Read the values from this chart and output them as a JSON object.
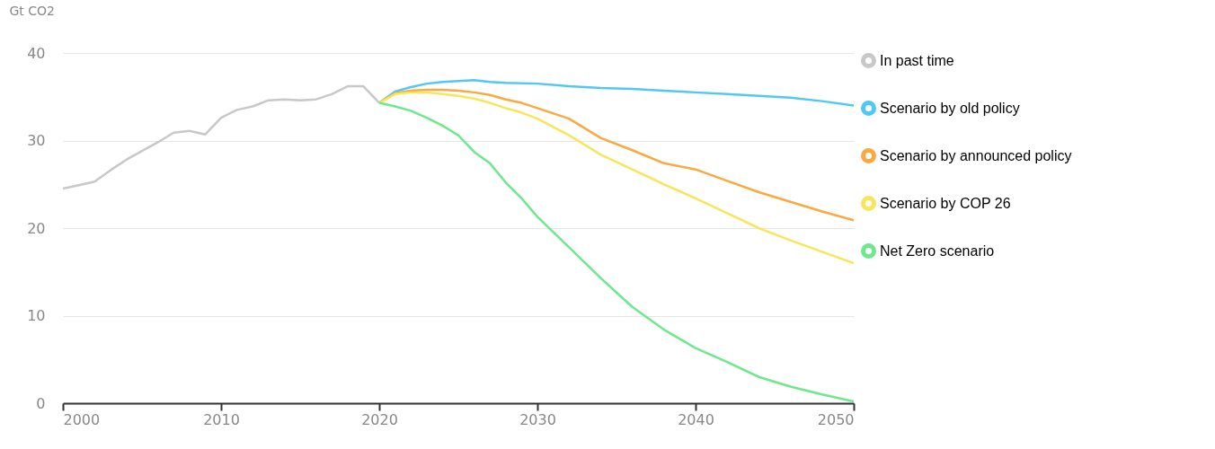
{
  "chart_data": {
    "type": "line",
    "ylabel": "Gt CO2",
    "xlim": [
      2000,
      2050
    ],
    "xticks": [
      2000,
      2010,
      2020,
      2030,
      2040,
      2050
    ],
    "ylim": [
      0,
      40
    ],
    "yticks": [
      0,
      10,
      20,
      30,
      40
    ],
    "grid": "y",
    "legend": "top right",
    "marker": "none",
    "line_style": "solid",
    "series": [
      {
        "name": "In past time",
        "color": "#c8c8c8",
        "x": [
          2000,
          2001,
          2002,
          2003,
          2004,
          2005,
          2006,
          2007,
          2008,
          2009,
          2010,
          2011,
          2012,
          2013,
          2014,
          2015,
          2016,
          2017,
          2018,
          2019,
          2020
        ],
        "values": [
          24.5,
          24.9,
          25.3,
          26.6,
          27.8,
          28.8,
          29.8,
          30.9,
          31.1,
          30.7,
          32.6,
          33.5,
          33.9,
          34.6,
          34.7,
          34.6,
          34.7,
          35.3,
          36.2,
          36.2,
          34.3
        ]
      },
      {
        "name": "Scenario by old policy",
        "color": "#4fc8f5",
        "x": [
          2020,
          2021,
          2022,
          2023,
          2024,
          2025,
          2026,
          2027,
          2028,
          2030,
          2032,
          2034,
          2036,
          2038,
          2040,
          2042,
          2044,
          2046,
          2048,
          2050
        ],
        "values": [
          34.3,
          35.6,
          36.1,
          36.5,
          36.7,
          36.8,
          36.9,
          36.7,
          36.6,
          36.5,
          36.2,
          36.0,
          35.9,
          35.7,
          35.5,
          35.3,
          35.1,
          34.9,
          34.5,
          34.0
        ]
      },
      {
        "name": "Scenario by announced policy",
        "color": "#f9a940",
        "x": [
          2020,
          2021,
          2022,
          2023,
          2024,
          2025,
          2026,
          2027,
          2028,
          2029,
          2030,
          2032,
          2034,
          2036,
          2038,
          2040,
          2042,
          2044,
          2046,
          2048,
          2050
        ],
        "values": [
          34.3,
          35.4,
          35.7,
          35.8,
          35.8,
          35.7,
          35.5,
          35.2,
          34.7,
          34.3,
          33.7,
          32.5,
          30.3,
          28.9,
          27.4,
          26.7,
          25.4,
          24.1,
          23.0,
          21.9,
          20.9
        ]
      },
      {
        "name": "Scenario by COP 26",
        "color": "#f9e55a",
        "x": [
          2020,
          2021,
          2022,
          2023,
          2024,
          2025,
          2026,
          2027,
          2028,
          2029,
          2030,
          2032,
          2034,
          2036,
          2038,
          2040,
          2042,
          2044,
          2046,
          2048,
          2050
        ],
        "values": [
          34.3,
          35.3,
          35.5,
          35.5,
          35.3,
          35.1,
          34.8,
          34.3,
          33.7,
          33.2,
          32.5,
          30.6,
          28.4,
          26.7,
          25.0,
          23.4,
          21.7,
          20.0,
          18.6,
          17.3,
          16.0
        ]
      },
      {
        "name": "Net Zero scenario",
        "color": "#6ee88d",
        "x": [
          2020,
          2021,
          2022,
          2023,
          2024,
          2025,
          2026,
          2027,
          2028,
          2029,
          2030,
          2032,
          2034,
          2036,
          2038,
          2040,
          2042,
          2044,
          2046,
          2048,
          2050
        ],
        "values": [
          34.3,
          33.9,
          33.4,
          32.6,
          31.7,
          30.6,
          28.7,
          27.4,
          25.2,
          23.4,
          21.3,
          17.8,
          14.3,
          11.0,
          8.4,
          6.3,
          4.7,
          3.0,
          1.9,
          1.0,
          0.2
        ]
      }
    ]
  }
}
